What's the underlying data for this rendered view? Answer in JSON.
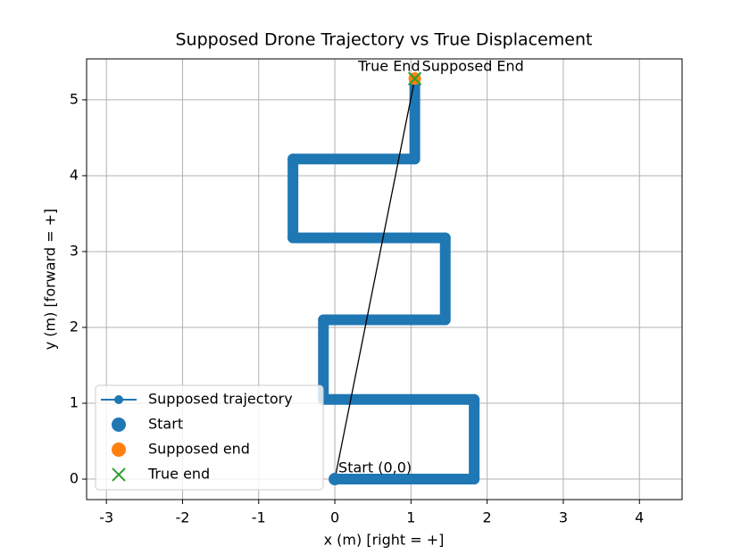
{
  "chart_data": {
    "type": "line",
    "title": "Supposed Drone Trajectory vs True Displacement",
    "xlabel": "x (m)  [right = +]",
    "ylabel": "y (m)  [forward = +]",
    "xlim": [
      -3.26,
      4.56
    ],
    "ylim": [
      -0.27,
      5.54
    ],
    "xticks": [
      -3,
      -2,
      -1,
      0,
      1,
      2,
      3,
      4
    ],
    "yticks": [
      0,
      1,
      2,
      3,
      4,
      5
    ],
    "grid": true,
    "legend": "lower left",
    "series": [
      {
        "name": "Supposed trajectory",
        "color": "#1f77b4",
        "x": [
          0,
          1.83,
          1.83,
          -0.15,
          -0.15,
          1.45,
          1.45,
          -0.55,
          -0.55,
          1.05,
          1.05
        ],
        "values": [
          0,
          0,
          1.05,
          1.05,
          2.1,
          2.1,
          3.18,
          3.18,
          4.22,
          4.22,
          5.28
        ]
      }
    ],
    "points": [
      {
        "name": "Start",
        "color": "#1f77b4",
        "marker": "o",
        "x": 0,
        "y": 0
      },
      {
        "name": "Supposed end",
        "color": "#ff7f0e",
        "marker": "o",
        "x": 1.05,
        "y": 5.28
      },
      {
        "name": "True end",
        "color": "#2ca02c",
        "marker": "x",
        "x": 1.05,
        "y": 5.28
      }
    ],
    "annotations": [
      {
        "text": "True End",
        "x": 1.05,
        "y": 5.28
      },
      {
        "text": "Supposed End",
        "x": 1.05,
        "y": 5.28
      },
      {
        "text": "Start (0,0)",
        "x": 0,
        "y": 0
      }
    ]
  }
}
